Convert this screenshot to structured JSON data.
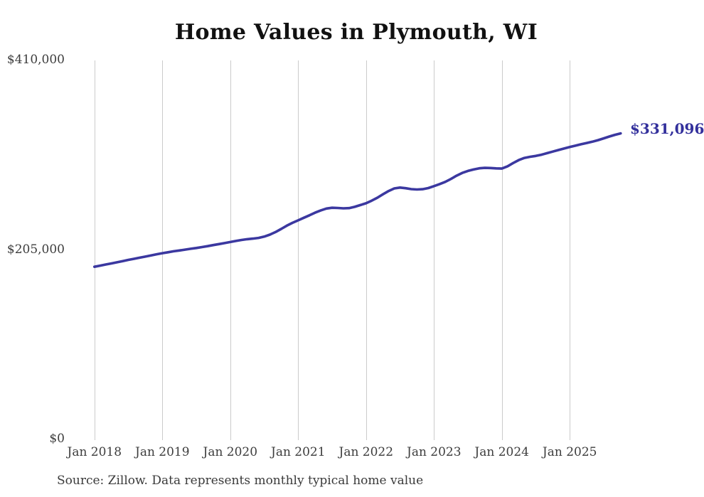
{
  "chart_data": {
    "type": "line",
    "title": "Home Values in Plymouth, WI",
    "xlabel": "",
    "ylabel": "",
    "x_unit": "month",
    "grid": "vertical-only",
    "legend": "none",
    "ylim": [
      0,
      410000
    ],
    "y_ticks": [
      "$410,000",
      "$205,000",
      "$0"
    ],
    "y_tick_values": [
      410000,
      205000,
      0
    ],
    "x_ticks": [
      "Jan 2018",
      "Jan 2019",
      "Jan 2020",
      "Jan 2021",
      "Jan 2022",
      "Jan 2023",
      "Jan 2024",
      "Jan 2025"
    ],
    "end_label": "$331,096",
    "end_value": 331096,
    "x": [
      "2018-01",
      "2018-02",
      "2018-03",
      "2018-04",
      "2018-05",
      "2018-06",
      "2018-07",
      "2018-08",
      "2018-09",
      "2018-10",
      "2018-11",
      "2018-12",
      "2019-01",
      "2019-02",
      "2019-03",
      "2019-04",
      "2019-05",
      "2019-06",
      "2019-07",
      "2019-08",
      "2019-09",
      "2019-10",
      "2019-11",
      "2019-12",
      "2020-01",
      "2020-02",
      "2020-03",
      "2020-04",
      "2020-05",
      "2020-06",
      "2020-07",
      "2020-08",
      "2020-09",
      "2020-10",
      "2020-11",
      "2020-12",
      "2021-01",
      "2021-02",
      "2021-03",
      "2021-04",
      "2021-05",
      "2021-06",
      "2021-07",
      "2021-08",
      "2021-09",
      "2021-10",
      "2021-11",
      "2021-12",
      "2022-01",
      "2022-02",
      "2022-03",
      "2022-04",
      "2022-05",
      "2022-06",
      "2022-07",
      "2022-08",
      "2022-09",
      "2022-10",
      "2022-11",
      "2022-12",
      "2023-01",
      "2023-02",
      "2023-03",
      "2023-04",
      "2023-05",
      "2023-06",
      "2023-07",
      "2023-08",
      "2023-09",
      "2023-10",
      "2023-11",
      "2023-12",
      "2024-01",
      "2024-02",
      "2024-03",
      "2024-04",
      "2024-05",
      "2024-06",
      "2024-07",
      "2024-08",
      "2024-09",
      "2024-10",
      "2024-11",
      "2024-12",
      "2025-01",
      "2025-02",
      "2025-03",
      "2025-04",
      "2025-05",
      "2025-06",
      "2025-07",
      "2025-08",
      "2025-09",
      "2025-10"
    ],
    "values": [
      186800,
      188000,
      189200,
      190400,
      191600,
      192900,
      194200,
      195400,
      196600,
      197800,
      199100,
      200300,
      201500,
      202500,
      203500,
      204400,
      205300,
      206200,
      207100,
      208100,
      209100,
      210200,
      211300,
      212400,
      213500,
      214700,
      215800,
      216600,
      217200,
      218000,
      219400,
      221500,
      224300,
      227700,
      231200,
      234300,
      237000,
      239800,
      242500,
      245300,
      247800,
      249800,
      250600,
      250400,
      250000,
      250200,
      251600,
      253500,
      255500,
      258300,
      261500,
      265200,
      268800,
      271500,
      272500,
      271800,
      270800,
      270400,
      270700,
      271900,
      274000,
      276200,
      278600,
      281800,
      285300,
      288300,
      290500,
      292000,
      293300,
      293800,
      293600,
      293200,
      293000,
      295500,
      299000,
      302200,
      304500,
      305800,
      306700,
      308000,
      309700,
      311400,
      313100,
      314700,
      316300,
      317800,
      319300,
      320700,
      322100,
      323800,
      325700,
      327700,
      329500,
      331096
    ],
    "colors": {
      "line": "#3b38a0",
      "end_label": "#33309c",
      "gridline": "#cbcbcb",
      "tick_text": "#3d3d3d",
      "title_text": "#111111",
      "source_text": "#3a3a3a"
    }
  },
  "source_note": "Source: Zillow. Data represents monthly typical home value"
}
